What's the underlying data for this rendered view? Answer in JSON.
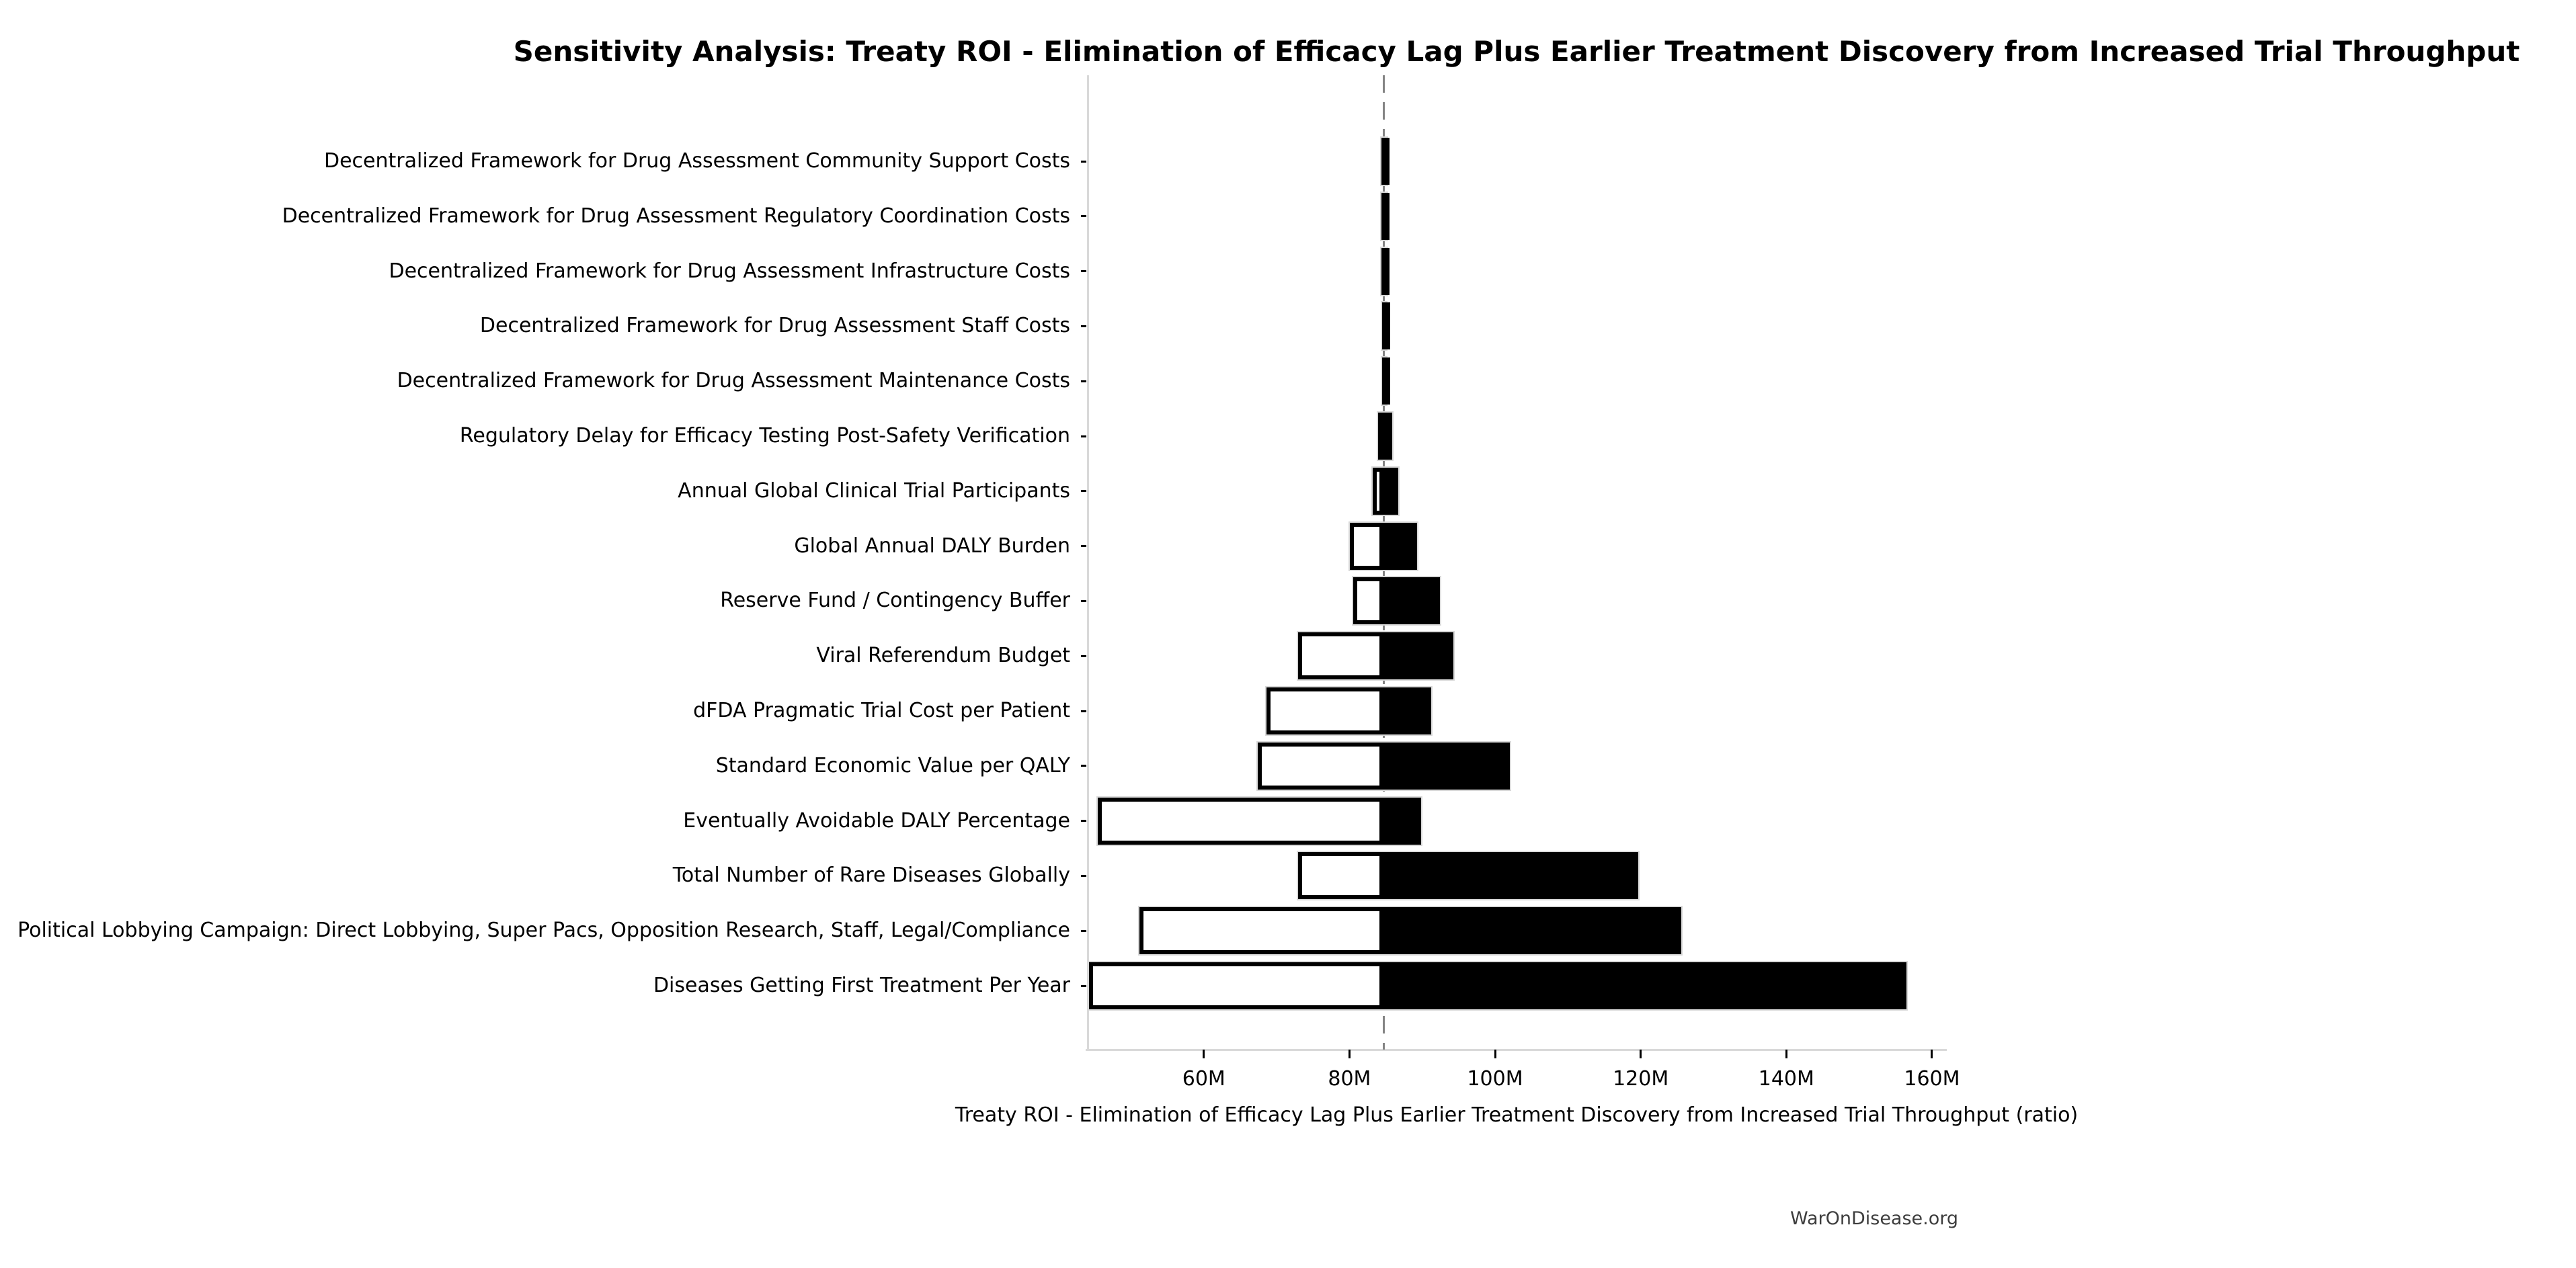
{
  "title": "Sensitivity Analysis: Treaty ROI - Elimination of Efficacy Lag Plus Earlier Treatment Discovery from Increased Trial Throughput",
  "footer": {
    "text": "WarOnDisease.org"
  },
  "chart_data": {
    "type": "bar",
    "subtype": "tornado-sensitivity",
    "orientation": "horizontal",
    "title": "Sensitivity Analysis: Treaty ROI - Elimination of Efficacy Lag Plus Earlier Treatment Discovery from Increased Trial Throughput",
    "xlabel": "Treaty ROI - Elimination of Efficacy Lag Plus Earlier Treatment Discovery from Increased Trial Throughput (ratio)",
    "ylabel": "",
    "grid": false,
    "legend": "none",
    "xunit": "M",
    "xlim": [
      44.05,
      161.85
    ],
    "base_value": 84.7,
    "x_ticks": [
      {
        "value": 60,
        "label": "60M"
      },
      {
        "value": 80,
        "label": "80M"
      },
      {
        "value": 100,
        "label": "100M"
      },
      {
        "value": 120,
        "label": "120M"
      },
      {
        "value": 140,
        "label": "140M"
      },
      {
        "value": 160,
        "label": "160M"
      }
    ],
    "parameters": [
      {
        "label": "Decentralized Framework for Drug Assessment Community Support Costs",
        "low": 84.4,
        "high": 85.1
      },
      {
        "label": "Decentralized Framework for Drug Assessment Regulatory Coordination Costs",
        "low": 84.4,
        "high": 85.1
      },
      {
        "label": "Decentralized Framework for Drug Assessment Infrastructure Costs",
        "low": 84.4,
        "high": 85.1
      },
      {
        "label": "Decentralized Framework for Drug Assessment Staff Costs",
        "low": 84.5,
        "high": 85.0
      },
      {
        "label": "Decentralized Framework for Drug Assessment Maintenance Costs",
        "low": 84.5,
        "high": 85.0
      },
      {
        "label": "Regulatory Delay for Efficacy Testing Post-Safety Verification",
        "low": 83.9,
        "high": 85.9
      },
      {
        "label": "Annual Global Clinical Trial Participants",
        "low": 83.2,
        "high": 86.7
      },
      {
        "label": "Global Annual DALY Burden",
        "low": 80.1,
        "high": 89.3
      },
      {
        "label": "Reserve Fund / Contingency Buffer",
        "low": 80.5,
        "high": 92.4
      },
      {
        "label": "Viral Referendum Budget",
        "low": 72.9,
        "high": 94.3
      },
      {
        "label": "dFDA Pragmatic Trial Cost per Patient",
        "low": 68.6,
        "high": 91.2
      },
      {
        "label": "Standard Economic Value per QALY",
        "low": 67.4,
        "high": 102.0
      },
      {
        "label": "Eventually Avoidable DALY Percentage",
        "low": 45.4,
        "high": 89.8
      },
      {
        "label": "Total Number of Rare Diseases Globally",
        "low": 72.9,
        "high": 119.7
      },
      {
        "label": "Political Lobbying Campaign: Direct Lobbying, Super Pacs, Opposition Research, Staff, Legal/Compliance",
        "low": 51.2,
        "high": 125.6
      },
      {
        "label": "Diseases Getting First Treatment Per Year",
        "low": 44.2,
        "high": 156.5
      }
    ],
    "colors": {
      "bar_high_fill": "#000000",
      "bar_low_fill": "#ffffff",
      "bar_low_border": "#000000",
      "bar_outline": "#d9d9d9",
      "base_line": "#848484",
      "spine": "#d9d9d9",
      "text": "#000000",
      "footer_text": "#3d3d3d"
    },
    "base_line_style": "dashed",
    "legend_position": "none"
  }
}
